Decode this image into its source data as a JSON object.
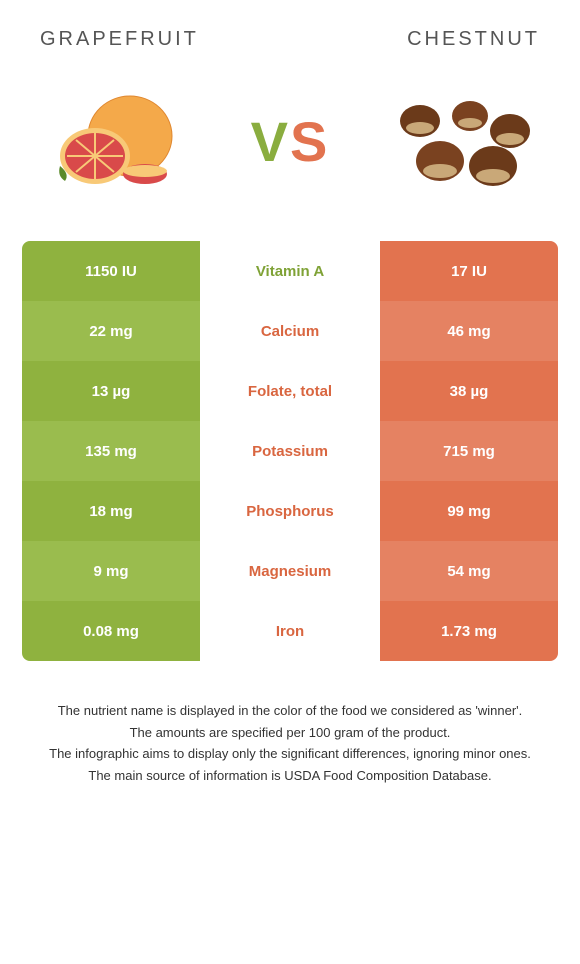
{
  "header": {
    "left": "GRAPEFRUIT",
    "right": "CHESTNUT"
  },
  "vs": {
    "v": "V",
    "s": "S"
  },
  "colors": {
    "left_primary": "#8fb23f",
    "left_alt": "#9abc4e",
    "right_primary": "#e2734f",
    "right_alt": "#e58262",
    "mid_winner_left": "#7fa236",
    "mid_winner_right": "#d96640"
  },
  "rows": [
    {
      "left": "1150 IU",
      "mid": "Vitamin A",
      "right": "17 IU",
      "winner": "left"
    },
    {
      "left": "22 mg",
      "mid": "Calcium",
      "right": "46 mg",
      "winner": "right"
    },
    {
      "left": "13 µg",
      "mid": "Folate, total",
      "right": "38 µg",
      "winner": "right"
    },
    {
      "left": "135 mg",
      "mid": "Potassium",
      "right": "715 mg",
      "winner": "right"
    },
    {
      "left": "18 mg",
      "mid": "Phosphorus",
      "right": "99 mg",
      "winner": "right"
    },
    {
      "left": "9 mg",
      "mid": "Magnesium",
      "right": "54 mg",
      "winner": "right"
    },
    {
      "left": "0.08 mg",
      "mid": "Iron",
      "right": "1.73 mg",
      "winner": "right"
    }
  ],
  "footnotes": [
    "The nutrient name is displayed in the color of the food we considered as 'winner'.",
    "The amounts are specified per 100 gram of the product.",
    "The infographic aims to display only the significant differences, ignoring minor ones.",
    "The main source of information is USDA Food Composition Database."
  ]
}
